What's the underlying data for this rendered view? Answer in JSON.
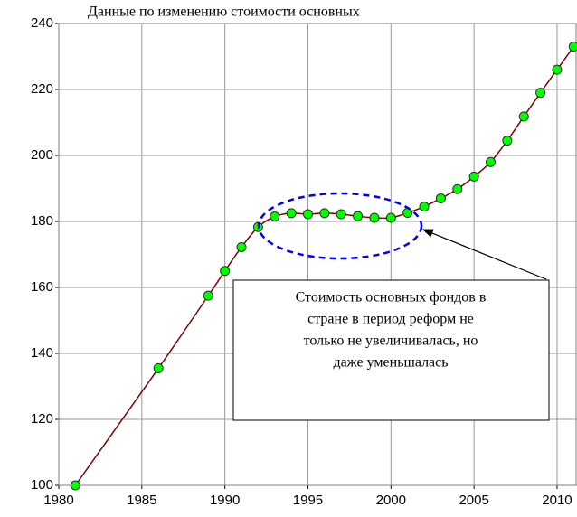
{
  "chart_data": {
    "type": "line",
    "title": "Данные по изменению стоимости основных",
    "x": [
      1981,
      1986,
      1989,
      1990,
      1991,
      1992,
      1993,
      1994,
      1995,
      1996,
      1997,
      1998,
      1999,
      2000,
      2001,
      2002,
      2003,
      2004,
      2005,
      2006,
      2007,
      2008,
      2009,
      2010,
      2011
    ],
    "series": [
      {
        "color": "#800000",
        "marker_color": "#00ff00",
        "values": [
          100,
          135.5,
          157.5,
          165,
          172.2,
          178.3,
          181.5,
          182.5,
          182.2,
          182.5,
          182.2,
          181.6,
          181.1,
          181.1,
          182.6,
          184.5,
          187,
          189.8,
          193.6,
          198,
          204.5,
          211.8,
          219,
          226,
          233
        ]
      }
    ],
    "xlim": [
      1980,
      2011.2
    ],
    "xticks": [
      1980,
      1985,
      1990,
      1995,
      2000,
      2005,
      2010
    ],
    "ylim": [
      100,
      240
    ],
    "yticks": [
      100,
      120,
      140,
      160,
      180,
      200,
      220,
      240
    ],
    "grid": true,
    "annotation": [
      "Стоимость основных фондов в",
      "стране в период реформ не",
      "только не увеличивалась, но",
      "даже уменьшалась"
    ]
  }
}
